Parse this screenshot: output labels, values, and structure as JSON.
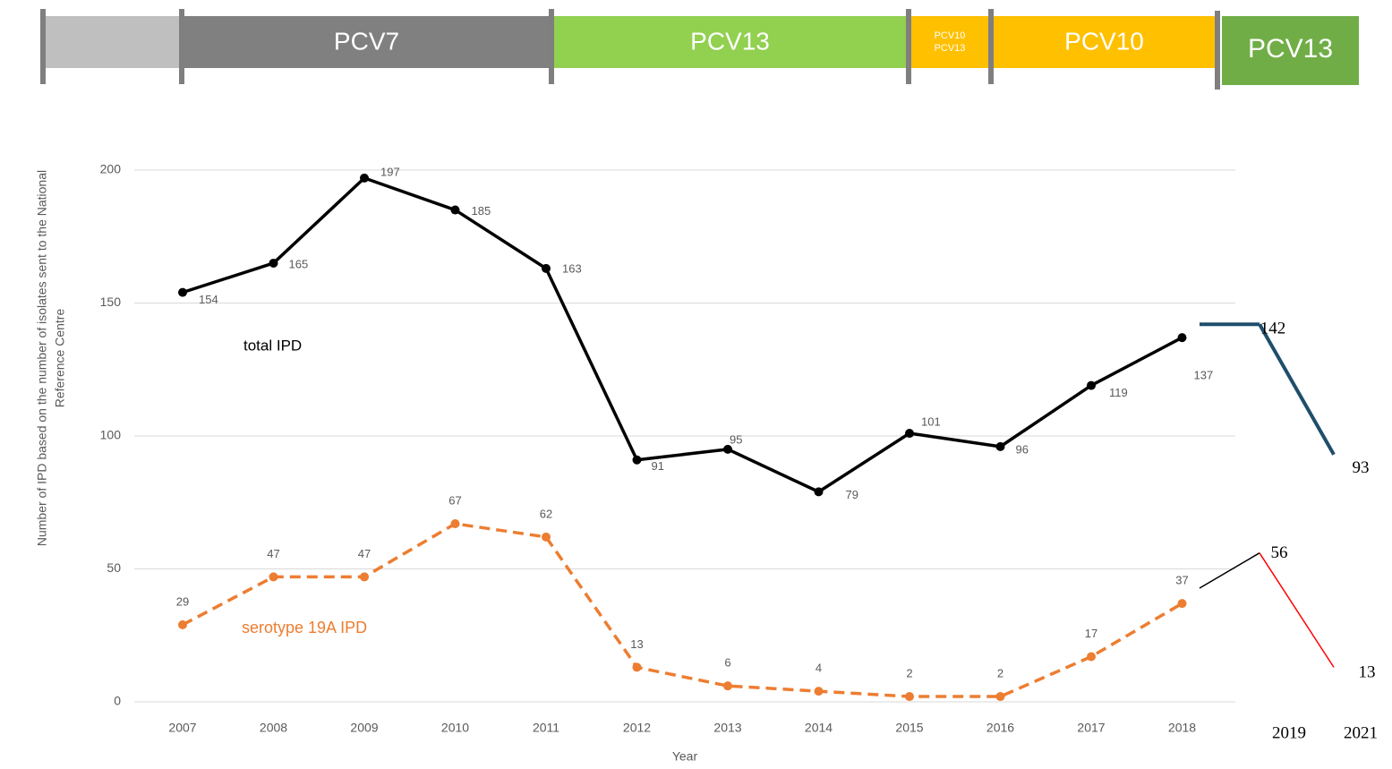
{
  "timeline": [
    {
      "color": "#bfbfbf"
    },
    {
      "label": "PCV7",
      "color": "#808080"
    },
    {
      "label": "PCV13",
      "color": "#92d050"
    },
    {
      "label": [
        "PCV10",
        "PCV13"
      ],
      "color": "#ffc000"
    },
    {
      "label": "PCV10",
      "color": "#ffc000"
    },
    {
      "label": "PCV13",
      "color": "#70ad47"
    }
  ],
  "chart_data": {
    "type": "line",
    "x_label": "Year",
    "y_label": [
      "Number of IPD based on the number of isolates sent to the National",
      "Reference Centre"
    ],
    "categories": [
      "2007",
      "2008",
      "2009",
      "2010",
      "2011",
      "2012",
      "2013",
      "2014",
      "2015",
      "2016",
      "2017",
      "2018",
      "2019",
      "2021"
    ],
    "series": [
      {
        "name": "total IPD",
        "color": "#000000",
        "values": [
          154,
          165,
          197,
          185,
          163,
          91,
          95,
          79,
          101,
          96,
          119,
          137,
          null,
          null
        ]
      },
      {
        "name": "serotype 19A IPD",
        "color": "#ed7d31",
        "dashed": true,
        "values": [
          29,
          47,
          47,
          67,
          62,
          13,
          6,
          4,
          2,
          2,
          17,
          37,
          null,
          null
        ]
      },
      {
        "color": "#1f4e6b",
        "values": [
          null,
          null,
          null,
          null,
          null,
          null,
          null,
          null,
          null,
          null,
          null,
          null,
          142,
          93
        ]
      },
      {
        "color": "#ff0000",
        "values": [
          null,
          null,
          null,
          null,
          null,
          null,
          null,
          null,
          null,
          null,
          null,
          null,
          56,
          13
        ]
      }
    ],
    "ylim": [
      0,
      200
    ],
    "yticks": [
      0,
      50,
      100,
      150,
      200
    ],
    "grid": true
  }
}
